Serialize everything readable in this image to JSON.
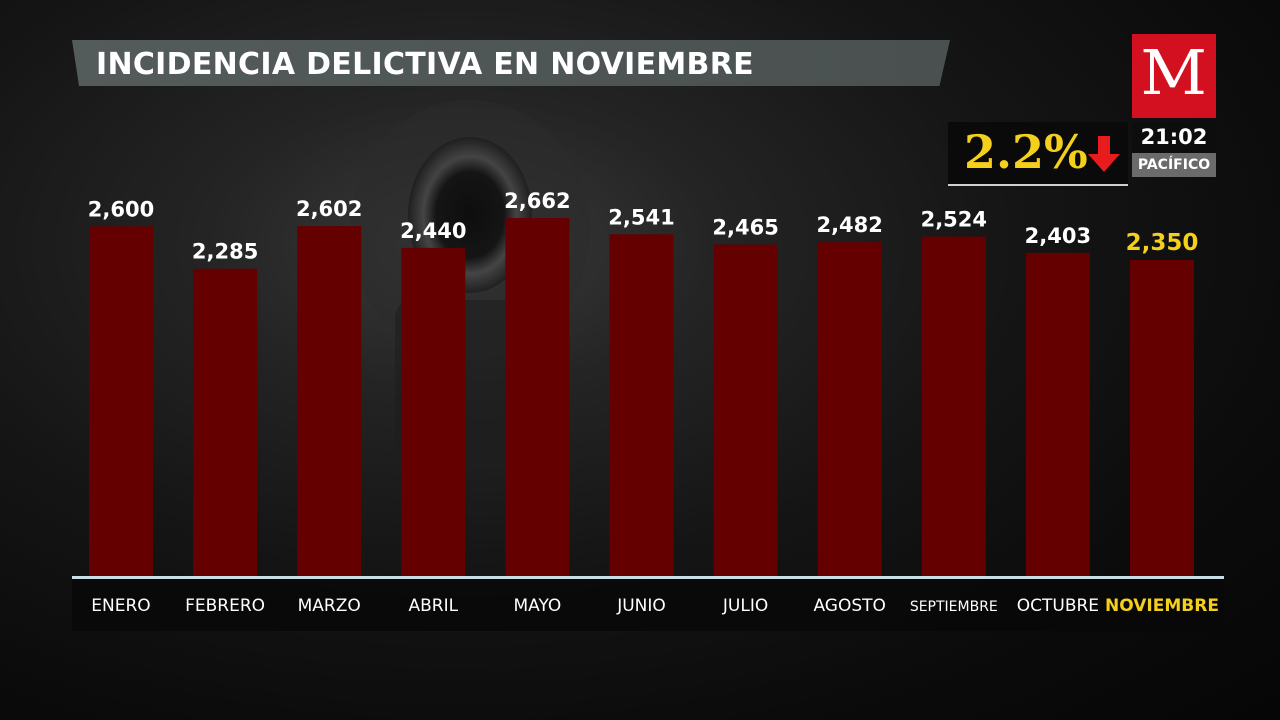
{
  "title": "INCIDENCIA DELICTIVA EN NOVIEMBRE",
  "logo": {
    "letter": "M"
  },
  "clock": {
    "time": "21:02",
    "zone": "PACÍFICO"
  },
  "change": {
    "value": "2.2%",
    "direction": "down",
    "icon": "arrow-down-icon"
  },
  "colors": {
    "bar": "#650000",
    "highlight_text": "#f4cf1b",
    "label_text": "#ffffff",
    "axis_line": "#c8dde4",
    "brand": "#d2101f"
  },
  "chart_data": {
    "type": "bar",
    "title": "INCIDENCIA DELICTIVA EN NOVIEMBRE",
    "categories": [
      "ENERO",
      "FEBRERO",
      "MARZO",
      "ABRIL",
      "MAYO",
      "JUNIO",
      "JULIO",
      "AGOSTO",
      "SEPTIEMBRE",
      "OCTUBRE",
      "NOVIEMBRE"
    ],
    "values": [
      2600,
      2285,
      2602,
      2440,
      2662,
      2541,
      2465,
      2482,
      2524,
      2403,
      2350
    ],
    "value_labels": [
      "2,600",
      "2,285",
      "2,602",
      "2,440",
      "2,662",
      "2,541",
      "2,465",
      "2,482",
      "2,524",
      "2,403",
      "2,350"
    ],
    "highlight": "NOVIEMBRE",
    "xlabel": "",
    "ylabel": "",
    "ylim": [
      0,
      2662
    ],
    "grid": false,
    "legend": "none"
  }
}
